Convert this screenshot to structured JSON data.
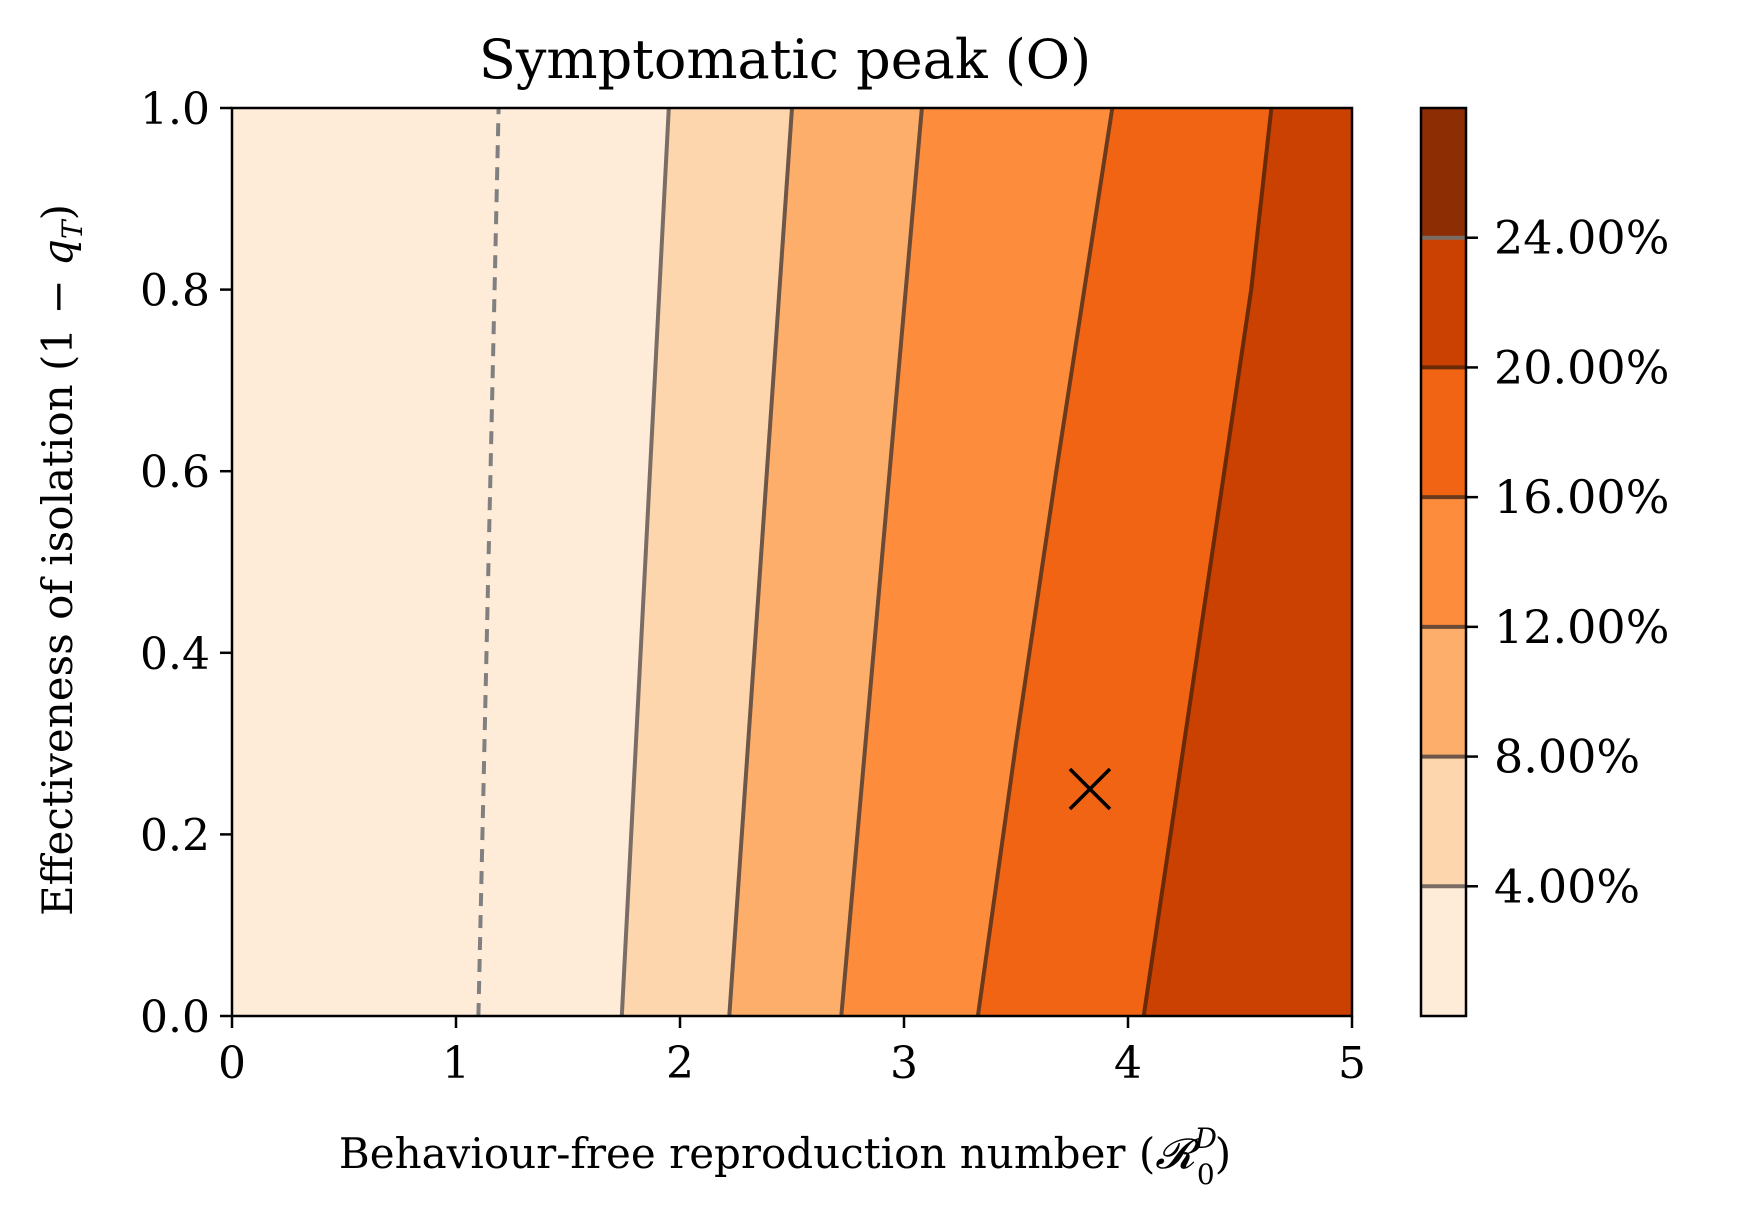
{
  "chart_data": {
    "type": "contour",
    "title": "Symptomatic peak (O)",
    "xlabel": "Behaviour-free reproduction number (",
    "xlabel_symbol": "𝓡",
    "xlabel_sup": "D",
    "xlabel_sub": "0",
    "xlabel_close": ")",
    "ylabel": "Effectiveness of isolation (1 − ",
    "ylabel_symbol": "q",
    "ylabel_sub": "T",
    "ylabel_close": ")",
    "xlim": [
      0,
      5
    ],
    "ylim": [
      0,
      1
    ],
    "x_ticks": [
      0,
      1,
      2,
      3,
      4,
      5
    ],
    "x_tick_labels": [
      "0",
      "1",
      "2",
      "3",
      "4",
      "5"
    ],
    "y_ticks": [
      0.0,
      0.2,
      0.4,
      0.6,
      0.8,
      1.0
    ],
    "y_tick_labels": [
      "0.0",
      "0.2",
      "0.4",
      "0.6",
      "0.8",
      "1.0"
    ],
    "grid": false,
    "colorbar": {
      "range": [
        0,
        0.28
      ],
      "levels": [
        0.04,
        0.08,
        0.12,
        0.16,
        0.2,
        0.24
      ],
      "tick_labels": [
        "4.00%",
        "8.00%",
        "12.00%",
        "16.00%",
        "20.00%",
        "24.00%"
      ],
      "band_colors": [
        "#feebd8",
        "#fdd6ad",
        "#fdae6b",
        "#fd8d3c",
        "#f06413",
        "#ca4102",
        "#8c2d04"
      ]
    },
    "contour_lines": [
      {
        "level": 0.04,
        "points": [
          [
            1.74,
            0.0
          ],
          [
            1.95,
            1.0
          ]
        ]
      },
      {
        "level": 0.08,
        "points": [
          [
            2.22,
            0.0
          ],
          [
            2.5,
            1.0
          ]
        ]
      },
      {
        "level": 0.12,
        "points": [
          [
            2.72,
            0.0
          ],
          [
            3.08,
            1.0
          ]
        ]
      },
      {
        "level": 0.16,
        "points": [
          [
            3.33,
            0.0
          ],
          [
            3.5,
            0.3
          ],
          [
            3.68,
            0.6
          ],
          [
            3.93,
            1.0
          ]
        ]
      },
      {
        "level": 0.2,
        "points": [
          [
            4.07,
            0.0
          ],
          [
            4.22,
            0.25
          ],
          [
            4.4,
            0.55
          ],
          [
            4.55,
            0.8
          ],
          [
            4.64,
            1.0
          ]
        ]
      }
    ],
    "threshold_line": {
      "style": "dashed",
      "color": "#808080",
      "points": [
        [
          1.1,
          0.0
        ],
        [
          1.19,
          1.0
        ]
      ]
    },
    "marker": {
      "symbol": "x",
      "x": 3.83,
      "y": 0.25,
      "color": "#000000"
    }
  }
}
